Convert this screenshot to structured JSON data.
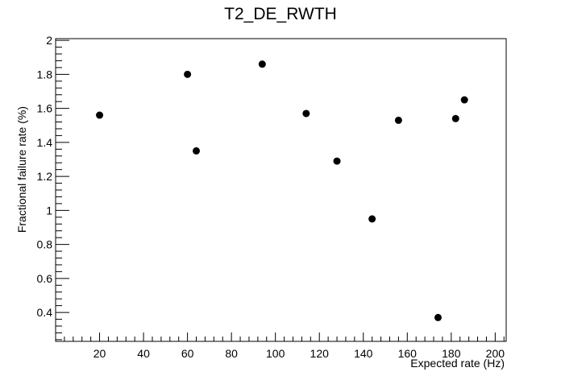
{
  "chart_data": {
    "type": "scatter",
    "title": "T2_DE_RWTH",
    "xlabel": "Expected rate (Hz)",
    "ylabel": "Fractional failure rate (%)",
    "xlim": [
      0,
      205
    ],
    "ylim": [
      0.23,
      2.01
    ],
    "xticks": [
      20,
      40,
      60,
      80,
      100,
      120,
      140,
      160,
      180,
      200
    ],
    "yticks": [
      0.4,
      0.6,
      0.8,
      1,
      1.2,
      1.4,
      1.6,
      1.8,
      2
    ],
    "grid": false,
    "marker_color": "#000000",
    "points": [
      {
        "x": 20,
        "y": 1.56
      },
      {
        "x": 60,
        "y": 1.8
      },
      {
        "x": 64,
        "y": 1.35
      },
      {
        "x": 94,
        "y": 1.86
      },
      {
        "x": 114,
        "y": 1.57
      },
      {
        "x": 128,
        "y": 1.29
      },
      {
        "x": 144,
        "y": 0.95
      },
      {
        "x": 156,
        "y": 1.53
      },
      {
        "x": 174,
        "y": 0.37
      },
      {
        "x": 182,
        "y": 1.54
      },
      {
        "x": 186,
        "y": 1.65
      }
    ]
  }
}
